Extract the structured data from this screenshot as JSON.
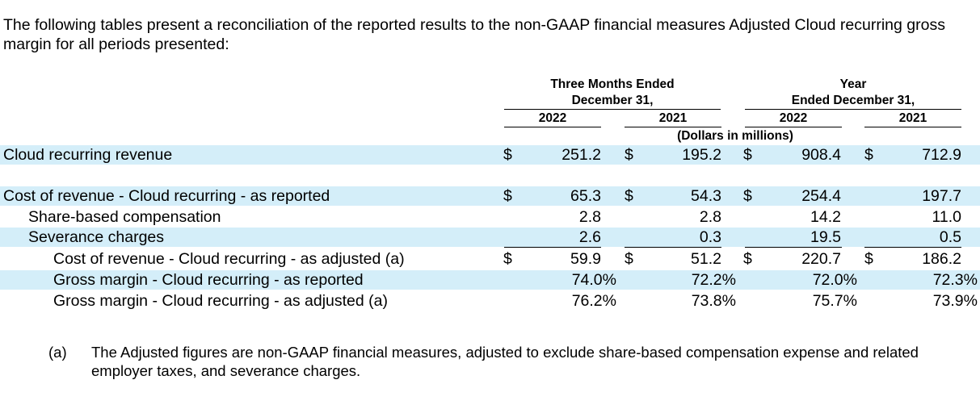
{
  "intro": "The following tables present a reconciliation of the reported results to the non-GAAP financial measures Adjusted Cloud recurring gross margin for all periods presented:",
  "header": {
    "three_months_line1": "Three Months Ended",
    "three_months_line2": "December 31,",
    "year_line1": "Year",
    "year_line2": "Ended December 31,",
    "col_2022a": "2022",
    "col_2021a": "2021",
    "col_2022b": "2022",
    "col_2021b": "2021",
    "units": "(Dollars in millions)"
  },
  "rows": [
    {
      "label": "Cloud recurring revenue",
      "cur": [
        "$",
        "$",
        "$",
        "$"
      ],
      "values": [
        "251.2",
        "195.2",
        "908.4",
        "712.9"
      ]
    },
    {
      "label": "Cost of revenue - Cloud recurring - as reported",
      "cur": [
        "$",
        "$",
        "$",
        ""
      ],
      "values": [
        "65.3",
        "54.3",
        "254.4",
        "197.7"
      ]
    },
    {
      "label": "Share-based compensation",
      "cur": [
        "",
        "",
        "",
        ""
      ],
      "values": [
        "2.8",
        "2.8",
        "14.2",
        "11.0"
      ]
    },
    {
      "label": "Severance charges",
      "cur": [
        "",
        "",
        "",
        ""
      ],
      "values": [
        "2.6",
        "0.3",
        "19.5",
        "0.5"
      ]
    },
    {
      "label": "Cost of revenue - Cloud recurring - as adjusted (a)",
      "cur": [
        "$",
        "$",
        "$",
        "$"
      ],
      "values": [
        "59.9",
        "51.2",
        "220.7",
        "186.2"
      ]
    },
    {
      "label": "Gross margin - Cloud recurring - as reported",
      "cur": [
        "",
        "",
        "",
        ""
      ],
      "values": [
        "74.0%",
        "72.2%",
        "72.0%",
        "72.3%"
      ]
    },
    {
      "label": "Gross margin - Cloud recurring - as adjusted (a)",
      "cur": [
        "",
        "",
        "",
        ""
      ],
      "values": [
        "76.2%",
        "73.8%",
        "75.7%",
        "73.9%"
      ]
    }
  ],
  "footnote": {
    "marker": "(a)",
    "text": "The Adjusted figures are non-GAAP financial measures, adjusted to exclude share-based compensation expense and related employer taxes, and severance charges."
  }
}
